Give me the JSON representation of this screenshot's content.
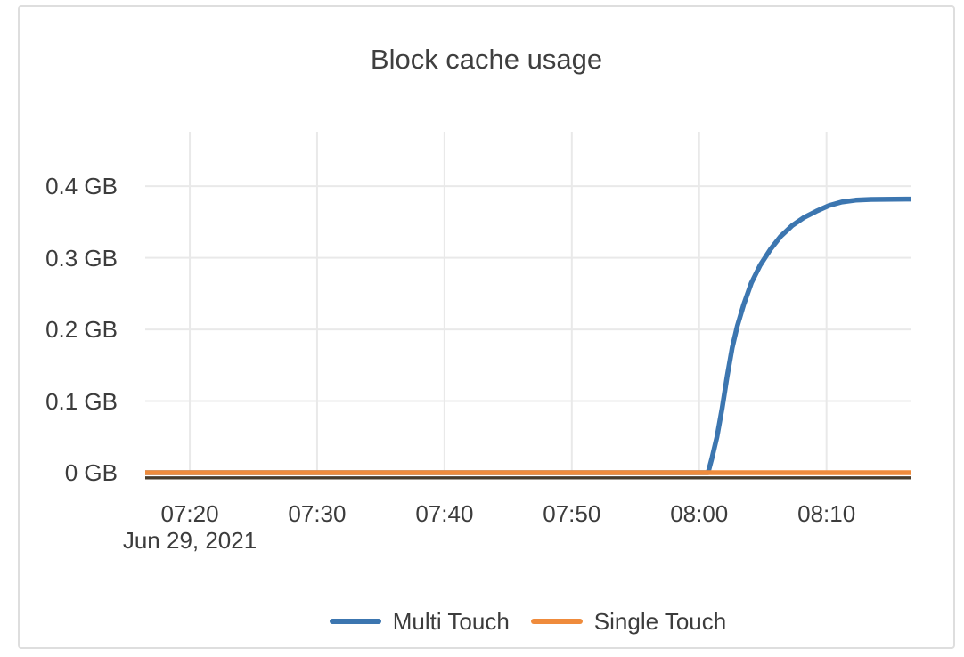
{
  "colors": {
    "background": "#ffffff",
    "card_border": "#dedede",
    "grid": "#e9e9e9",
    "axis_line": "#473c2e",
    "text": "#3c3c3c",
    "title_text": "#3f3f3f",
    "multi_touch_blue": "#3c76b0",
    "single_touch_orange": "#ef8b3c"
  },
  "chart_data": {
    "type": "line",
    "title": "Block cache usage",
    "x_axis_note": "Jun 29, 2021",
    "xlabel": "",
    "ylabel": "",
    "y_unit": "GB",
    "x_unit": "minutes since 00:00 (time of day)",
    "grid": true,
    "legend_position": "bottom",
    "xlim_minutes": [
      436.5,
      496.6
    ],
    "ylim": [
      0,
      0.476
    ],
    "x_ticks": [
      {
        "minutes": 440,
        "label": "07:20"
      },
      {
        "minutes": 450,
        "label": "07:30"
      },
      {
        "minutes": 460,
        "label": "07:40"
      },
      {
        "minutes": 470,
        "label": "07:50"
      },
      {
        "minutes": 480,
        "label": "08:00"
      },
      {
        "minutes": 490,
        "label": "08:10"
      }
    ],
    "y_ticks": [
      {
        "value": 0,
        "label": "0 GB"
      },
      {
        "value": 0.1,
        "label": "0.1 GB"
      },
      {
        "value": 0.2,
        "label": "0.2 GB"
      },
      {
        "value": 0.3,
        "label": "0.3 GB"
      },
      {
        "value": 0.4,
        "label": "0.4 GB"
      }
    ],
    "series": [
      {
        "name": "Multi Touch",
        "color": "#3c76b0",
        "points": [
          [
            436.5,
            0
          ],
          [
            450,
            0
          ],
          [
            460,
            0
          ],
          [
            470,
            0
          ],
          [
            480,
            0
          ],
          [
            480.7,
            0
          ],
          [
            481.0,
            0.02
          ],
          [
            481.4,
            0.05
          ],
          [
            481.8,
            0.09
          ],
          [
            482.2,
            0.135
          ],
          [
            482.6,
            0.175
          ],
          [
            483.0,
            0.205
          ],
          [
            483.5,
            0.235
          ],
          [
            484.1,
            0.265
          ],
          [
            484.8,
            0.29
          ],
          [
            485.6,
            0.312
          ],
          [
            486.4,
            0.33
          ],
          [
            487.3,
            0.345
          ],
          [
            488.2,
            0.356
          ],
          [
            489.2,
            0.365
          ],
          [
            490.2,
            0.373
          ],
          [
            491.2,
            0.378
          ],
          [
            492.3,
            0.3805
          ],
          [
            493.5,
            0.3815
          ],
          [
            496.6,
            0.382
          ]
        ]
      },
      {
        "name": "Single Touch",
        "color": "#ef8b3c",
        "points": [
          [
            436.5,
            0
          ],
          [
            450,
            0
          ],
          [
            460,
            0
          ],
          [
            470,
            0
          ],
          [
            480,
            0
          ],
          [
            490,
            0
          ],
          [
            496.6,
            0
          ]
        ]
      }
    ]
  }
}
